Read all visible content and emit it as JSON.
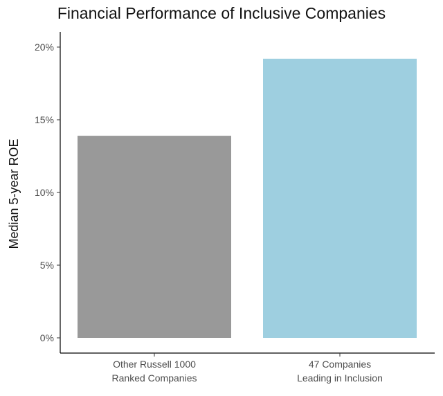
{
  "chart_data": {
    "type": "bar",
    "title": "Financial Performance of Inclusive Companies",
    "xlabel": "",
    "ylabel": "Median 5-year ROE",
    "categories": [
      [
        "Other Russell 1000",
        "Ranked Companies"
      ],
      [
        "47 Companies",
        "Leading in Inclusion"
      ]
    ],
    "values": [
      13.9,
      19.2
    ],
    "colors": [
      "#999999",
      "#9ecfe0"
    ],
    "ylim": [
      0,
      21
    ],
    "yticks": [
      0,
      5,
      10,
      15,
      20
    ],
    "ytick_labels": [
      "0%",
      "5%",
      "10%",
      "15%",
      "20%"
    ],
    "grid": false,
    "legend": "none"
  }
}
